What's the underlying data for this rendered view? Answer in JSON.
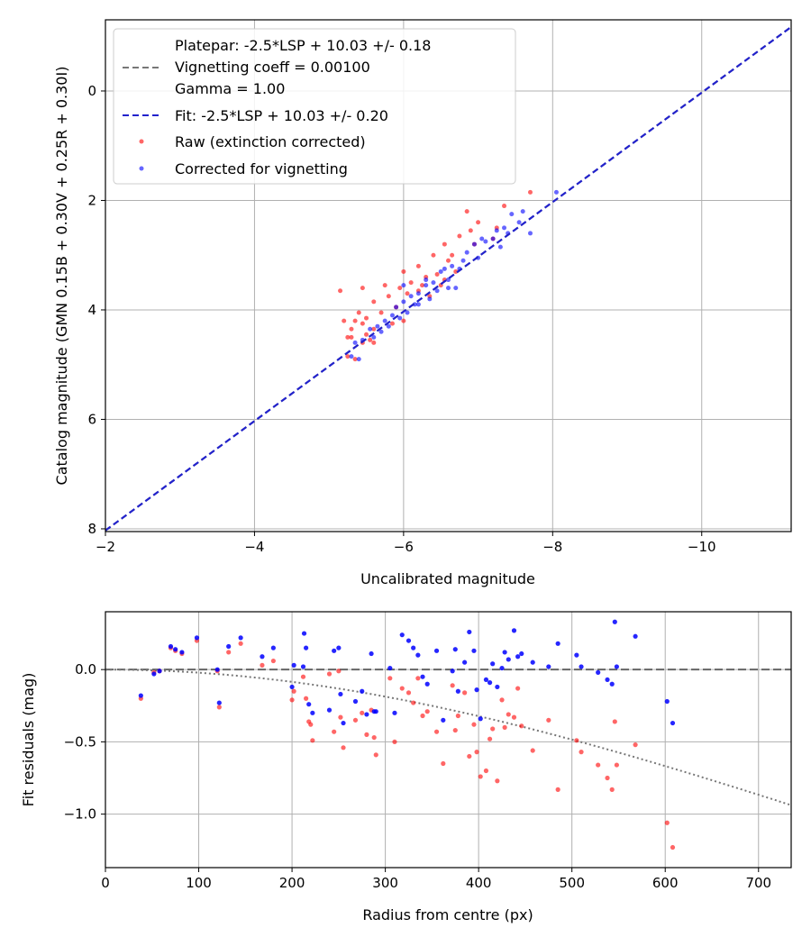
{
  "colors": {
    "raw": "#ff0000",
    "corrected": "#0000ff",
    "fit_line": "#2222cc",
    "platepar_line": "#777777",
    "vignetting_curve": "#777777",
    "zero_line": "#666666"
  },
  "chart_data": [
    {
      "type": "scatter",
      "title": "",
      "xlabel": "Uncalibrated magnitude",
      "ylabel": "Catalog magnitude (GMN 0.15B + 0.30V + 0.25R + 0.30I)",
      "xlim": [
        -2,
        -11.2
      ],
      "ylim": [
        8.05,
        -1.3
      ],
      "xticks": [
        -2,
        -4,
        -6,
        -8,
        -10
      ],
      "xtick_labels": [
        "−2",
        "−4",
        "−6",
        "−8",
        "−10"
      ],
      "yticks": [
        0,
        2,
        4,
        6,
        8
      ],
      "ytick_labels": [
        "0",
        "2",
        "4",
        "6",
        "8"
      ],
      "grid": true,
      "legend_position": "top-left",
      "legend": {
        "platepar_lines": [
          "Platepar: -2.5*LSP + 10.03 +/- 0.18",
          "Vignetting coeff = 0.00100",
          "Gamma = 1.00"
        ],
        "fit": "Fit: -2.5*LSP + 10.03 +/- 0.20",
        "raw": "Raw (extinction corrected)",
        "corrected": "Corrected for vignetting"
      },
      "lines": [
        {
          "name": "Fit",
          "style": "dashed",
          "points": [
            [
              -2,
              8.03
            ],
            [
              -11.2,
              -1.17
            ]
          ]
        }
      ],
      "series": [
        {
          "name": "Raw (extinction corrected)",
          "points": [
            [
              -7.7,
              1.85
            ],
            [
              -7.35,
              2.1
            ],
            [
              -6.85,
              2.2
            ],
            [
              -7.0,
              2.4
            ],
            [
              -6.9,
              2.55
            ],
            [
              -7.2,
              2.7
            ],
            [
              -6.55,
              2.8
            ],
            [
              -6.75,
              2.65
            ],
            [
              -6.95,
              2.8
            ],
            [
              -6.4,
              3.0
            ],
            [
              -6.6,
              3.1
            ],
            [
              -6.2,
              3.2
            ],
            [
              -6.0,
              3.3
            ],
            [
              -6.45,
              3.35
            ],
            [
              -6.3,
              3.4
            ],
            [
              -6.1,
              3.5
            ],
            [
              -6.5,
              3.55
            ],
            [
              -5.95,
              3.6
            ],
            [
              -6.2,
              3.65
            ],
            [
              -5.8,
              3.75
            ],
            [
              -6.05,
              3.7
            ],
            [
              -5.75,
              3.55
            ],
            [
              -5.45,
              3.6
            ],
            [
              -5.15,
              3.65
            ],
            [
              -5.6,
              3.85
            ],
            [
              -5.9,
              3.95
            ],
            [
              -5.7,
              4.05
            ],
            [
              -5.4,
              4.05
            ],
            [
              -5.5,
              4.15
            ],
            [
              -5.35,
              4.2
            ],
            [
              -5.2,
              4.2
            ],
            [
              -5.45,
              4.25
            ],
            [
              -5.3,
              4.35
            ],
            [
              -5.6,
              4.35
            ],
            [
              -5.5,
              4.45
            ],
            [
              -5.3,
              4.5
            ],
            [
              -5.55,
              4.55
            ],
            [
              -5.45,
              4.6
            ],
            [
              -5.6,
              4.6
            ],
            [
              -5.25,
              4.5
            ],
            [
              -6.0,
              4.2
            ],
            [
              -5.85,
              4.25
            ],
            [
              -6.35,
              3.75
            ],
            [
              -6.25,
              3.55
            ],
            [
              -6.55,
              3.45
            ],
            [
              -6.7,
              3.3
            ],
            [
              -5.25,
              4.85
            ],
            [
              -5.35,
              4.9
            ],
            [
              -7.25,
              2.5
            ],
            [
              -6.65,
              3.0
            ]
          ]
        },
        {
          "name": "Corrected for vignetting",
          "points": [
            [
              -8.05,
              1.85
            ],
            [
              -7.6,
              2.2
            ],
            [
              -7.45,
              2.25
            ],
            [
              -7.55,
              2.4
            ],
            [
              -7.35,
              2.5
            ],
            [
              -7.4,
              2.6
            ],
            [
              -7.7,
              2.6
            ],
            [
              -7.1,
              2.75
            ],
            [
              -7.2,
              2.7
            ],
            [
              -7.3,
              2.85
            ],
            [
              -6.95,
              2.8
            ],
            [
              -6.85,
              2.95
            ],
            [
              -7.0,
              3.05
            ],
            [
              -6.8,
              3.1
            ],
            [
              -6.65,
              3.2
            ],
            [
              -6.75,
              3.25
            ],
            [
              -6.5,
              3.3
            ],
            [
              -6.6,
              3.45
            ],
            [
              -6.4,
              3.5
            ],
            [
              -6.3,
              3.55
            ],
            [
              -6.45,
              3.65
            ],
            [
              -6.6,
              3.6
            ],
            [
              -6.7,
              3.6
            ],
            [
              -6.2,
              3.7
            ],
            [
              -6.1,
              3.75
            ],
            [
              -6.35,
              3.8
            ],
            [
              -6.0,
              3.85
            ],
            [
              -6.15,
              3.9
            ],
            [
              -5.9,
              3.95
            ],
            [
              -6.05,
              4.05
            ],
            [
              -5.85,
              4.1
            ],
            [
              -5.95,
              4.15
            ],
            [
              -5.75,
              4.2
            ],
            [
              -5.8,
              4.3
            ],
            [
              -5.65,
              4.3
            ],
            [
              -5.7,
              4.4
            ],
            [
              -5.55,
              4.35
            ],
            [
              -5.6,
              4.5
            ],
            [
              -5.45,
              4.55
            ],
            [
              -5.35,
              4.6
            ],
            [
              -5.3,
              4.85
            ],
            [
              -5.4,
              4.9
            ],
            [
              -6.3,
              3.45
            ],
            [
              -6.55,
              3.25
            ],
            [
              -7.25,
              2.55
            ],
            [
              -7.05,
              2.7
            ],
            [
              -6.2,
              3.9
            ],
            [
              -6.0,
              3.55
            ]
          ]
        }
      ]
    },
    {
      "type": "scatter",
      "title": "",
      "xlabel": "Radius from centre (px)",
      "ylabel": "Fit residuals (mag)",
      "xlim": [
        0,
        735
      ],
      "ylim": [
        -1.37,
        0.4
      ],
      "xticks": [
        0,
        100,
        200,
        300,
        400,
        500,
        600,
        700
      ],
      "xtick_labels": [
        "0",
        "100",
        "200",
        "300",
        "400",
        "500",
        "600",
        "700"
      ],
      "yticks": [
        0.0,
        -0.5,
        -1.0
      ],
      "ytick_labels": [
        "0.0",
        "−0.5",
        "−1.0"
      ],
      "grid": true,
      "lines": [
        {
          "name": "Zero",
          "style": "dashed",
          "points": [
            [
              0,
              0
            ],
            [
              735,
              0
            ]
          ]
        },
        {
          "name": "Vignetting model",
          "style": "dotted",
          "function": "-2.5*log10(cos(atan(0.001*r))^4)"
        }
      ],
      "series": [
        {
          "name": "Raw (extinction corrected)",
          "points": [
            [
              38,
              -0.2
            ],
            [
              52,
              -0.02
            ],
            [
              58,
              -0.01
            ],
            [
              70,
              0.15
            ],
            [
              75,
              0.13
            ],
            [
              82,
              0.11
            ],
            [
              98,
              0.2
            ],
            [
              120,
              -0.01
            ],
            [
              122,
              -0.26
            ],
            [
              132,
              0.12
            ],
            [
              145,
              0.18
            ],
            [
              168,
              0.03
            ],
            [
              180,
              0.06
            ],
            [
              200,
              -0.21
            ],
            [
              202,
              -0.15
            ],
            [
              212,
              -0.05
            ],
            [
              215,
              -0.2
            ],
            [
              218,
              -0.36
            ],
            [
              220,
              -0.38
            ],
            [
              222,
              -0.49
            ],
            [
              240,
              -0.03
            ],
            [
              245,
              -0.43
            ],
            [
              250,
              -0.01
            ],
            [
              252,
              -0.33
            ],
            [
              255,
              -0.54
            ],
            [
              268,
              -0.35
            ],
            [
              275,
              -0.3
            ],
            [
              280,
              -0.45
            ],
            [
              285,
              -0.28
            ],
            [
              288,
              -0.47
            ],
            [
              290,
              -0.59
            ],
            [
              305,
              -0.06
            ],
            [
              310,
              -0.5
            ],
            [
              318,
              -0.13
            ],
            [
              325,
              -0.16
            ],
            [
              330,
              -0.23
            ],
            [
              335,
              -0.06
            ],
            [
              340,
              -0.32
            ],
            [
              345,
              -0.29
            ],
            [
              355,
              -0.43
            ],
            [
              362,
              -0.65
            ],
            [
              372,
              -0.11
            ],
            [
              375,
              -0.42
            ],
            [
              378,
              -0.32
            ],
            [
              385,
              -0.16
            ],
            [
              390,
              -0.6
            ],
            [
              395,
              -0.38
            ],
            [
              398,
              -0.57
            ],
            [
              402,
              -0.74
            ],
            [
              408,
              -0.7
            ],
            [
              412,
              -0.48
            ],
            [
              415,
              -0.41
            ],
            [
              420,
              -0.77
            ],
            [
              425,
              -0.21
            ],
            [
              428,
              -0.4
            ],
            [
              432,
              -0.31
            ],
            [
              438,
              -0.33
            ],
            [
              442,
              -0.13
            ],
            [
              446,
              -0.39
            ],
            [
              458,
              -0.56
            ],
            [
              475,
              -0.35
            ],
            [
              485,
              -0.83
            ],
            [
              505,
              -0.49
            ],
            [
              510,
              -0.57
            ],
            [
              528,
              -0.66
            ],
            [
              538,
              -0.75
            ],
            [
              543,
              -0.83
            ],
            [
              546,
              -0.36
            ],
            [
              548,
              -0.66
            ],
            [
              568,
              -0.52
            ],
            [
              602,
              -1.06
            ],
            [
              608,
              -1.23
            ]
          ]
        },
        {
          "name": "Corrected for vignetting",
          "points": [
            [
              38,
              -0.18
            ],
            [
              52,
              -0.03
            ],
            [
              58,
              -0.01
            ],
            [
              70,
              0.16
            ],
            [
              75,
              0.14
            ],
            [
              82,
              0.12
            ],
            [
              98,
              0.22
            ],
            [
              120,
              0.0
            ],
            [
              122,
              -0.23
            ],
            [
              132,
              0.16
            ],
            [
              145,
              0.22
            ],
            [
              168,
              0.09
            ],
            [
              180,
              0.15
            ],
            [
              200,
              -0.12
            ],
            [
              202,
              0.03
            ],
            [
              212,
              0.02
            ],
            [
              213,
              0.25
            ],
            [
              215,
              0.15
            ],
            [
              218,
              -0.24
            ],
            [
              222,
              -0.3
            ],
            [
              240,
              -0.28
            ],
            [
              245,
              0.13
            ],
            [
              250,
              0.15
            ],
            [
              252,
              -0.17
            ],
            [
              255,
              -0.37
            ],
            [
              268,
              -0.22
            ],
            [
              275,
              -0.15
            ],
            [
              280,
              -0.31
            ],
            [
              285,
              0.11
            ],
            [
              288,
              -0.29
            ],
            [
              290,
              -0.29
            ],
            [
              305,
              0.01
            ],
            [
              310,
              -0.3
            ],
            [
              318,
              0.24
            ],
            [
              325,
              0.2
            ],
            [
              330,
              0.15
            ],
            [
              335,
              0.1
            ],
            [
              340,
              -0.05
            ],
            [
              345,
              -0.1
            ],
            [
              355,
              0.13
            ],
            [
              362,
              -0.35
            ],
            [
              372,
              -0.01
            ],
            [
              375,
              0.14
            ],
            [
              378,
              -0.15
            ],
            [
              385,
              0.05
            ],
            [
              390,
              0.26
            ],
            [
              395,
              0.13
            ],
            [
              398,
              -0.14
            ],
            [
              402,
              -0.34
            ],
            [
              408,
              -0.07
            ],
            [
              412,
              -0.09
            ],
            [
              415,
              0.04
            ],
            [
              420,
              -0.12
            ],
            [
              425,
              0.01
            ],
            [
              428,
              0.12
            ],
            [
              432,
              0.07
            ],
            [
              438,
              0.27
            ],
            [
              442,
              0.09
            ],
            [
              446,
              0.11
            ],
            [
              458,
              0.05
            ],
            [
              475,
              0.02
            ],
            [
              485,
              0.18
            ],
            [
              505,
              0.1
            ],
            [
              510,
              0.02
            ],
            [
              528,
              -0.02
            ],
            [
              538,
              -0.07
            ],
            [
              543,
              -0.1
            ],
            [
              546,
              0.33
            ],
            [
              548,
              0.02
            ],
            [
              568,
              0.23
            ],
            [
              602,
              -0.22
            ],
            [
              608,
              -0.37
            ]
          ]
        }
      ]
    }
  ]
}
